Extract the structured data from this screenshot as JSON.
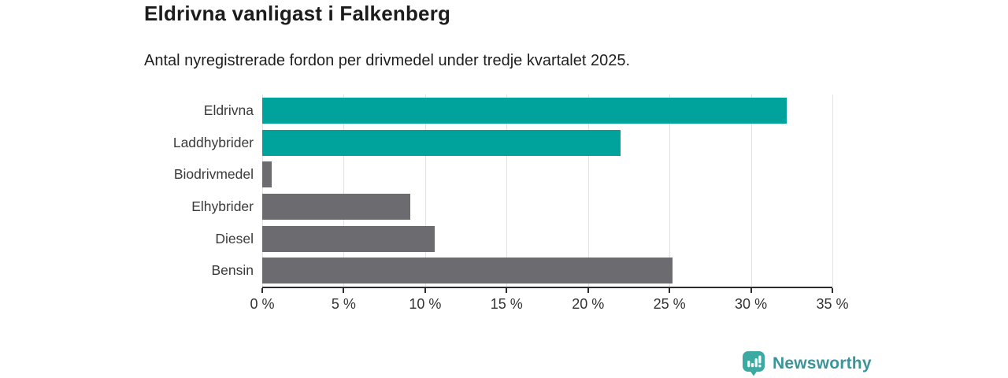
{
  "header": {
    "title": "Eldrivna vanligast i Falkenberg",
    "subtitle": "Antal nyregistrerade fordon per drivmedel under tredje kvartalet 2025."
  },
  "chart_data": {
    "type": "bar",
    "orientation": "horizontal",
    "title": "Eldrivna vanligast i Falkenberg",
    "subtitle": "Antal nyregistrerade fordon per drivmedel under tredje kvartalet 2025.",
    "categories": [
      "Eldrivna",
      "Laddhybrider",
      "Biodrivmedel",
      "Elhybrider",
      "Diesel",
      "Bensin"
    ],
    "values": [
      32.2,
      22.0,
      0.6,
      9.1,
      10.6,
      25.2
    ],
    "unit": "%",
    "xlim": [
      0,
      35
    ],
    "x_ticks": [
      0,
      5,
      10,
      15,
      20,
      25,
      30,
      35
    ],
    "x_tick_labels": [
      "0 %",
      "5 %",
      "10 %",
      "15 %",
      "20 %",
      "25 %",
      "30 %",
      "35 %"
    ],
    "bar_colors": [
      "#00a39b",
      "#00a39b",
      "#6b6b70",
      "#6b6b70",
      "#6b6b70",
      "#6b6b70"
    ],
    "highlight_color": "#00a39b",
    "default_color": "#6b6b70",
    "gridline_color": "#e2e2e2",
    "axis_color": "#2d2d2d",
    "grid": true,
    "legend": "none"
  },
  "footer": {
    "brand": "Newsworthy",
    "brand_color": "#3a949a",
    "icon": "newsworthy-logo-icon",
    "icon_color": "#3caaa3"
  }
}
